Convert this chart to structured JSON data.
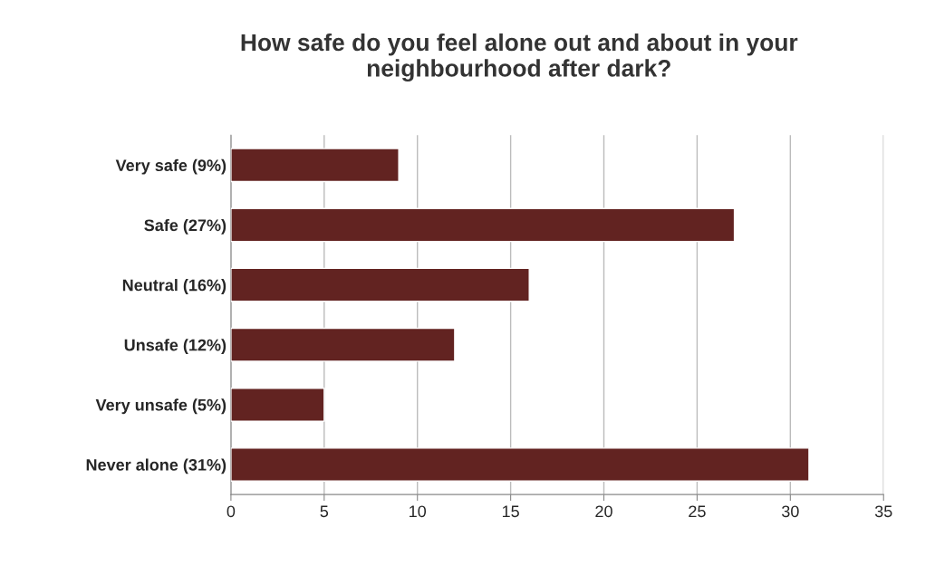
{
  "chart_data": {
    "type": "bar",
    "orientation": "horizontal",
    "title": "How safe do you feel alone out and about in your\nneighbourhood after dark?",
    "categories": [
      "Very safe (9%)",
      "Safe (27%)",
      "Neutral (16%)",
      "Unsafe (12%)",
      "Very unsafe (5%)",
      "Never alone (31%)"
    ],
    "values": [
      9,
      27,
      16,
      12,
      5,
      31
    ],
    "color": "#622321",
    "xlim": [
      0,
      35
    ],
    "xticks": [
      0,
      5,
      10,
      15,
      20,
      25,
      30,
      35
    ],
    "grid": "x"
  }
}
